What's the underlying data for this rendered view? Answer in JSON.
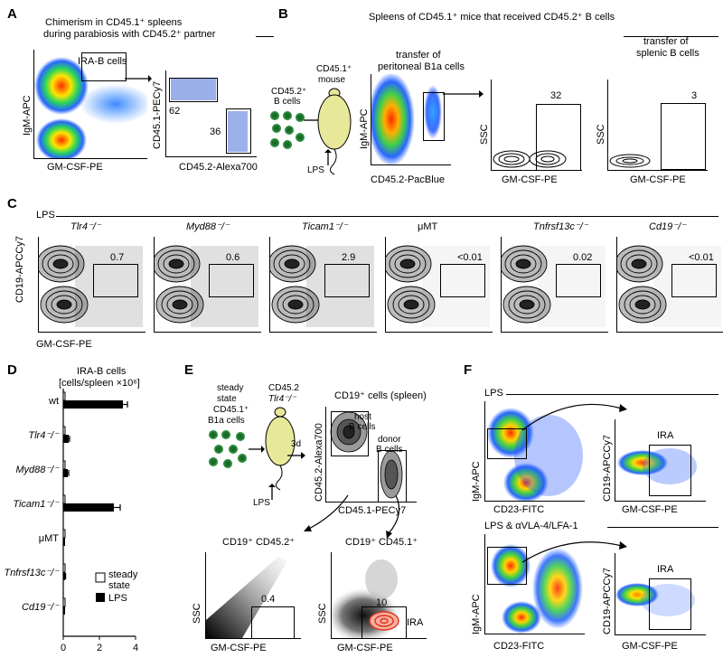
{
  "panels": {
    "A": {
      "letter": "A",
      "title_line1": "Chimerism in CD45.1⁺ spleens",
      "title_line2": "during parabiosis with CD45.2⁺ partner",
      "plot1": {
        "ylabel": "IgM-APC",
        "xlabel": "GM-CSF-PE",
        "gate_label": "IRA-B cells"
      },
      "plot2": {
        "ylabel": "CD45.1-PECy7",
        "xlabel": "CD45.2-Alexa700",
        "gate1_value": "62",
        "gate2_value": "36"
      }
    },
    "B": {
      "letter": "B",
      "title": "Spleens of CD45.1⁺ mice that received CD45.2⁺ B cells",
      "donor_label_line1": "CD45.2⁺",
      "donor_label_line2": "B cells",
      "mouse_label_line1": "CD45.1⁺",
      "mouse_label_line2": "mouse",
      "lps": "LPS",
      "plot1": {
        "ylabel": "IgM-APC",
        "xlabel": "CD45.2-PacBlue",
        "title_line1": "transfer of",
        "title_line2": "peritoneal B1a cells"
      },
      "plot2": {
        "ylabel": "SSC",
        "xlabel": "GM-CSF-PE",
        "gate_value": "32"
      },
      "plot3": {
        "ylabel": "SSC",
        "xlabel": "GM-CSF-PE",
        "title_line1": "transfer of",
        "title_line2": "splenic B cells",
        "gate_value": "3"
      }
    },
    "C": {
      "letter": "C",
      "header": "LPS",
      "ylabel": "CD19-APCCy7",
      "xlabel": "GM-CSF-PE",
      "plots": [
        {
          "title": "Tlr4⁻/⁻",
          "value": "0.7",
          "italic": true
        },
        {
          "title": "Myd88⁻/⁻",
          "value": "0.6",
          "italic": true
        },
        {
          "title": "Ticam1⁻/⁻",
          "value": "2.9",
          "italic": true
        },
        {
          "title": "μMT",
          "value": "<0.01",
          "italic": false
        },
        {
          "title": "Tnfrsf13c⁻/⁻",
          "value": "0.02",
          "italic": true
        },
        {
          "title": "Cd19⁻/⁻",
          "value": "<0.01",
          "italic": true
        }
      ]
    },
    "D": {
      "letter": "D",
      "title_line1": "IRA-B cells",
      "title_line2": "[cells/spleen ×10⁶]",
      "legend_steady_line1": "steady",
      "legend_steady_line2": "state",
      "legend_lps": "LPS"
    },
    "E": {
      "letter": "E",
      "donor_line1": "steady",
      "donor_line2": "state",
      "donor_line3": "CD45.1⁺",
      "donor_line4": "B1a cells",
      "mouse_line1": "CD45.2",
      "mouse_line2": "Tlr4⁻/⁻",
      "time": "3d",
      "lps": "LPS",
      "gate_title": "CD19⁺ cells (spleen)",
      "ylabel": "CD45.2-Alexa700",
      "xlabel": "CD45.1-PECy7",
      "host_line1": "host",
      "host_line2": "B cells",
      "donor_gate_line1": "donor",
      "donor_gate_line2": "B cells",
      "plot_host": {
        "title": "CD19⁺ CD45.2⁺",
        "ylabel": "SSC",
        "xlabel": "GM-CSF-PE",
        "value": "0.4"
      },
      "plot_donor": {
        "title": "CD19⁺ CD45.1⁺",
        "ylabel": "SSC",
        "xlabel": "GM-CSF-PE",
        "value": "10",
        "gate_label": "IRA"
      }
    },
    "F": {
      "letter": "F",
      "row1_header": "LPS",
      "row2_header": "LPS & αVLA-4/LFA-1",
      "left": {
        "ylabel": "IgM-APC",
        "xlabel": "CD23-FITC"
      },
      "right": {
        "ylabel": "CD19-APCCy7",
        "xlabel": "GM-CSF-PE",
        "gate_label": "IRA"
      }
    }
  },
  "chart_data": {
    "type": "bar",
    "orientation": "horizontal",
    "title": "IRA-B cells [cells/spleen ×10⁶]",
    "categories": [
      "wt",
      "Tlr4⁻/⁻",
      "Myd88⁻/⁻",
      "Ticam1⁻/⁻",
      "μMT",
      "Tnfrsf13c⁻/⁻",
      "Cd19⁻/⁻"
    ],
    "series": [
      {
        "name": "steady state",
        "values": [
          0.1,
          0.05,
          0.05,
          0.1,
          0.02,
          0.03,
          0.02
        ],
        "color": "#ffffff"
      },
      {
        "name": "LPS",
        "values": [
          3.3,
          0.3,
          0.25,
          2.8,
          0.05,
          0.1,
          0.05
        ],
        "errors": [
          0.25,
          0.05,
          0.05,
          0.35,
          0.02,
          0.03,
          0.02
        ],
        "color": "#000000"
      }
    ],
    "xlim": [
      0,
      4
    ],
    "xticks": [
      "0",
      "2",
      "4"
    ],
    "legend": "bottom-right"
  }
}
